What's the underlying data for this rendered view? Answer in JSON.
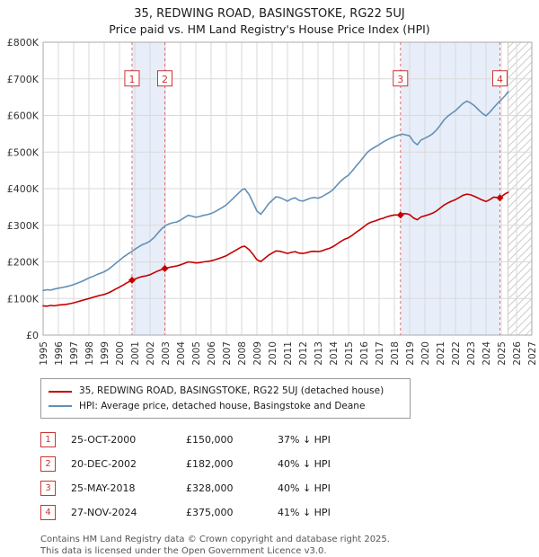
{
  "header": {
    "title": "35, REDWING ROAD, BASINGSTOKE, RG22 5UJ",
    "subtitle": "Price paid vs. HM Land Registry's House Price Index (HPI)"
  },
  "chart_data": {
    "type": "line",
    "x_range": [
      1995,
      2027
    ],
    "y_max_k": 800,
    "y_tick_labels": [
      "£0",
      "£100K",
      "£200K",
      "£300K",
      "£400K",
      "£500K",
      "£600K",
      "£700K",
      "£800K"
    ],
    "x_tick_labels": [
      "1995",
      "1996",
      "1997",
      "1998",
      "1999",
      "2000",
      "2001",
      "2002",
      "2003",
      "2004",
      "2005",
      "2006",
      "2007",
      "2008",
      "2009",
      "2010",
      "2011",
      "2012",
      "2013",
      "2014",
      "2015",
      "2016",
      "2017",
      "2018",
      "2019",
      "2020",
      "2021",
      "2022",
      "2023",
      "2024",
      "2025",
      "2026",
      "2027"
    ],
    "colors": {
      "red": "#c40000",
      "blue": "#6290b8",
      "band": "#e7eef9",
      "grid": "#d9d9d9",
      "frame": "#aaaaaa",
      "sale_line": "#e07070",
      "sale_box": "#cc3333"
    },
    "flag_y_k": 700,
    "hatch_start": 2025.45,
    "bands": [
      [
        2000.82,
        2002.97
      ],
      [
        2018.4,
        2024.91
      ]
    ],
    "series": [
      {
        "name": "35, REDWING ROAD, BASINGSTOKE, RG22 5UJ (detached house)",
        "color": "#c40000",
        "width": 1.6,
        "points": [
          [
            1995.0,
            80
          ],
          [
            1995.25,
            79
          ],
          [
            1995.5,
            81
          ],
          [
            1995.75,
            80
          ],
          [
            1996.0,
            82
          ],
          [
            1996.25,
            83
          ],
          [
            1996.5,
            84
          ],
          [
            1996.75,
            86
          ],
          [
            1997.0,
            88
          ],
          [
            1997.25,
            91
          ],
          [
            1997.5,
            94
          ],
          [
            1997.75,
            97
          ],
          [
            1998.0,
            100
          ],
          [
            1998.25,
            103
          ],
          [
            1998.5,
            106
          ],
          [
            1998.75,
            109
          ],
          [
            1999.0,
            111
          ],
          [
            1999.25,
            115
          ],
          [
            1999.5,
            120
          ],
          [
            1999.75,
            126
          ],
          [
            2000.0,
            131
          ],
          [
            2000.25,
            137
          ],
          [
            2000.5,
            143
          ],
          [
            2000.82,
            150
          ],
          [
            2001.0,
            153
          ],
          [
            2001.25,
            157
          ],
          [
            2001.5,
            160
          ],
          [
            2001.75,
            162
          ],
          [
            2002.0,
            165
          ],
          [
            2002.25,
            170
          ],
          [
            2002.5,
            175
          ],
          [
            2002.75,
            179
          ],
          [
            2002.97,
            182
          ],
          [
            2003.25,
            185
          ],
          [
            2003.5,
            187
          ],
          [
            2003.75,
            189
          ],
          [
            2004.0,
            192
          ],
          [
            2004.25,
            196
          ],
          [
            2004.5,
            200
          ],
          [
            2004.75,
            199
          ],
          [
            2005.0,
            197
          ],
          [
            2005.25,
            198
          ],
          [
            2005.5,
            200
          ],
          [
            2005.75,
            201
          ],
          [
            2006.0,
            203
          ],
          [
            2006.25,
            206
          ],
          [
            2006.5,
            209
          ],
          [
            2006.75,
            213
          ],
          [
            2007.0,
            217
          ],
          [
            2007.25,
            223
          ],
          [
            2007.5,
            229
          ],
          [
            2007.75,
            235
          ],
          [
            2008.0,
            241
          ],
          [
            2008.2,
            243
          ],
          [
            2008.5,
            233
          ],
          [
            2008.75,
            220
          ],
          [
            2009.0,
            206
          ],
          [
            2009.25,
            201
          ],
          [
            2009.5,
            209
          ],
          [
            2009.75,
            218
          ],
          [
            2010.0,
            224
          ],
          [
            2010.25,
            230
          ],
          [
            2010.5,
            229
          ],
          [
            2010.75,
            226
          ],
          [
            2011.0,
            223
          ],
          [
            2011.25,
            226
          ],
          [
            2011.5,
            228
          ],
          [
            2011.75,
            224
          ],
          [
            2012.0,
            223
          ],
          [
            2012.25,
            225
          ],
          [
            2012.5,
            228
          ],
          [
            2012.75,
            229
          ],
          [
            2013.0,
            228
          ],
          [
            2013.25,
            230
          ],
          [
            2013.5,
            234
          ],
          [
            2013.75,
            237
          ],
          [
            2014.0,
            242
          ],
          [
            2014.25,
            249
          ],
          [
            2014.5,
            256
          ],
          [
            2014.75,
            262
          ],
          [
            2015.0,
            266
          ],
          [
            2015.25,
            273
          ],
          [
            2015.5,
            281
          ],
          [
            2015.75,
            288
          ],
          [
            2016.0,
            296
          ],
          [
            2016.25,
            304
          ],
          [
            2016.5,
            309
          ],
          [
            2016.75,
            312
          ],
          [
            2017.0,
            316
          ],
          [
            2017.25,
            319
          ],
          [
            2017.5,
            323
          ],
          [
            2017.75,
            326
          ],
          [
            2018.0,
            328
          ],
          [
            2018.4,
            328
          ],
          [
            2018.6,
            332
          ],
          [
            2018.85,
            331
          ],
          [
            2019.0,
            329
          ],
          [
            2019.25,
            320
          ],
          [
            2019.5,
            315
          ],
          [
            2019.75,
            323
          ],
          [
            2020.0,
            326
          ],
          [
            2020.25,
            329
          ],
          [
            2020.5,
            333
          ],
          [
            2020.75,
            339
          ],
          [
            2021.0,
            347
          ],
          [
            2021.25,
            355
          ],
          [
            2021.5,
            361
          ],
          [
            2021.75,
            366
          ],
          [
            2022.0,
            370
          ],
          [
            2022.25,
            376
          ],
          [
            2022.5,
            382
          ],
          [
            2022.75,
            385
          ],
          [
            2023.0,
            383
          ],
          [
            2023.25,
            379
          ],
          [
            2023.5,
            374
          ],
          [
            2023.75,
            369
          ],
          [
            2024.0,
            365
          ],
          [
            2024.25,
            370
          ],
          [
            2024.5,
            377
          ],
          [
            2024.91,
            375
          ],
          [
            2025.1,
            381
          ],
          [
            2025.3,
            387
          ],
          [
            2025.45,
            390
          ]
        ]
      },
      {
        "name": "HPI: Average price, detached house, Basingstoke and Deane",
        "color": "#6290b8",
        "width": 1.6,
        "points": [
          [
            1995.0,
            122
          ],
          [
            1995.25,
            124
          ],
          [
            1995.5,
            123
          ],
          [
            1995.75,
            126
          ],
          [
            1996.0,
            128
          ],
          [
            1996.25,
            130
          ],
          [
            1996.5,
            132
          ],
          [
            1996.75,
            135
          ],
          [
            1997.0,
            138
          ],
          [
            1997.25,
            142
          ],
          [
            1997.5,
            146
          ],
          [
            1997.75,
            151
          ],
          [
            1998.0,
            156
          ],
          [
            1998.25,
            160
          ],
          [
            1998.5,
            165
          ],
          [
            1998.75,
            169
          ],
          [
            1999.0,
            173
          ],
          [
            1999.25,
            179
          ],
          [
            1999.5,
            187
          ],
          [
            1999.75,
            196
          ],
          [
            2000.0,
            204
          ],
          [
            2000.25,
            213
          ],
          [
            2000.5,
            220
          ],
          [
            2000.75,
            227
          ],
          [
            2001.0,
            234
          ],
          [
            2001.25,
            241
          ],
          [
            2001.5,
            247
          ],
          [
            2001.75,
            251
          ],
          [
            2002.0,
            257
          ],
          [
            2002.25,
            266
          ],
          [
            2002.5,
            278
          ],
          [
            2002.75,
            290
          ],
          [
            2003.0,
            299
          ],
          [
            2003.25,
            304
          ],
          [
            2003.5,
            307
          ],
          [
            2003.75,
            309
          ],
          [
            2004.0,
            314
          ],
          [
            2004.25,
            321
          ],
          [
            2004.5,
            327
          ],
          [
            2004.75,
            325
          ],
          [
            2005.0,
            322
          ],
          [
            2005.25,
            324
          ],
          [
            2005.5,
            327
          ],
          [
            2005.75,
            329
          ],
          [
            2006.0,
            332
          ],
          [
            2006.25,
            337
          ],
          [
            2006.5,
            343
          ],
          [
            2006.75,
            349
          ],
          [
            2007.0,
            356
          ],
          [
            2007.25,
            366
          ],
          [
            2007.5,
            376
          ],
          [
            2007.75,
            386
          ],
          [
            2008.0,
            396
          ],
          [
            2008.2,
            400
          ],
          [
            2008.5,
            383
          ],
          [
            2008.75,
            361
          ],
          [
            2009.0,
            339
          ],
          [
            2009.25,
            330
          ],
          [
            2009.5,
            343
          ],
          [
            2009.75,
            358
          ],
          [
            2010.0,
            368
          ],
          [
            2010.25,
            378
          ],
          [
            2010.5,
            376
          ],
          [
            2010.75,
            371
          ],
          [
            2011.0,
            366
          ],
          [
            2011.25,
            372
          ],
          [
            2011.5,
            375
          ],
          [
            2011.75,
            368
          ],
          [
            2012.0,
            366
          ],
          [
            2012.25,
            370
          ],
          [
            2012.5,
            374
          ],
          [
            2012.75,
            376
          ],
          [
            2013.0,
            374
          ],
          [
            2013.25,
            378
          ],
          [
            2013.5,
            384
          ],
          [
            2013.75,
            390
          ],
          [
            2014.0,
            398
          ],
          [
            2014.25,
            410
          ],
          [
            2014.5,
            421
          ],
          [
            2014.75,
            430
          ],
          [
            2015.0,
            437
          ],
          [
            2015.25,
            449
          ],
          [
            2015.5,
            462
          ],
          [
            2015.75,
            474
          ],
          [
            2016.0,
            487
          ],
          [
            2016.25,
            500
          ],
          [
            2016.5,
            508
          ],
          [
            2016.75,
            514
          ],
          [
            2017.0,
            520
          ],
          [
            2017.25,
            527
          ],
          [
            2017.5,
            533
          ],
          [
            2017.75,
            538
          ],
          [
            2018.0,
            542
          ],
          [
            2018.25,
            546
          ],
          [
            2018.5,
            549
          ],
          [
            2018.75,
            547
          ],
          [
            2019.0,
            544
          ],
          [
            2019.25,
            528
          ],
          [
            2019.5,
            520
          ],
          [
            2019.75,
            533
          ],
          [
            2020.0,
            538
          ],
          [
            2020.25,
            543
          ],
          [
            2020.5,
            550
          ],
          [
            2020.75,
            560
          ],
          [
            2021.0,
            573
          ],
          [
            2021.25,
            588
          ],
          [
            2021.5,
            598
          ],
          [
            2021.75,
            606
          ],
          [
            2022.0,
            613
          ],
          [
            2022.25,
            623
          ],
          [
            2022.5,
            633
          ],
          [
            2022.75,
            639
          ],
          [
            2023.0,
            634
          ],
          [
            2023.25,
            626
          ],
          [
            2023.5,
            616
          ],
          [
            2023.75,
            606
          ],
          [
            2024.0,
            599
          ],
          [
            2024.25,
            609
          ],
          [
            2024.5,
            621
          ],
          [
            2024.75,
            633
          ],
          [
            2025.0,
            643
          ],
          [
            2025.25,
            654
          ],
          [
            2025.45,
            665
          ]
        ]
      }
    ],
    "sales": [
      {
        "label": "1",
        "x": 2000.82,
        "price_k": 150
      },
      {
        "label": "2",
        "x": 2002.97,
        "price_k": 182
      },
      {
        "label": "3",
        "x": 2018.4,
        "price_k": 328
      },
      {
        "label": "4",
        "x": 2024.91,
        "price_k": 375
      }
    ]
  },
  "legend": {
    "property_label": "35, REDWING ROAD, BASINGSTOKE, RG22 5UJ (detached house)",
    "hpi_label": "HPI: Average price, detached house, Basingstoke and Deane"
  },
  "table": {
    "rows": [
      {
        "num": "1",
        "date": "25-OCT-2000",
        "price": "£150,000",
        "hpi": "37% ↓ HPI"
      },
      {
        "num": "2",
        "date": "20-DEC-2002",
        "price": "£182,000",
        "hpi": "40% ↓ HPI"
      },
      {
        "num": "3",
        "date": "25-MAY-2018",
        "price": "£328,000",
        "hpi": "40% ↓ HPI"
      },
      {
        "num": "4",
        "date": "27-NOV-2024",
        "price": "£375,000",
        "hpi": "41% ↓ HPI"
      }
    ]
  },
  "footer": {
    "line1": "Contains HM Land Registry data © Crown copyright and database right 2025.",
    "line2": "This data is licensed under the Open Government Licence v3.0."
  }
}
